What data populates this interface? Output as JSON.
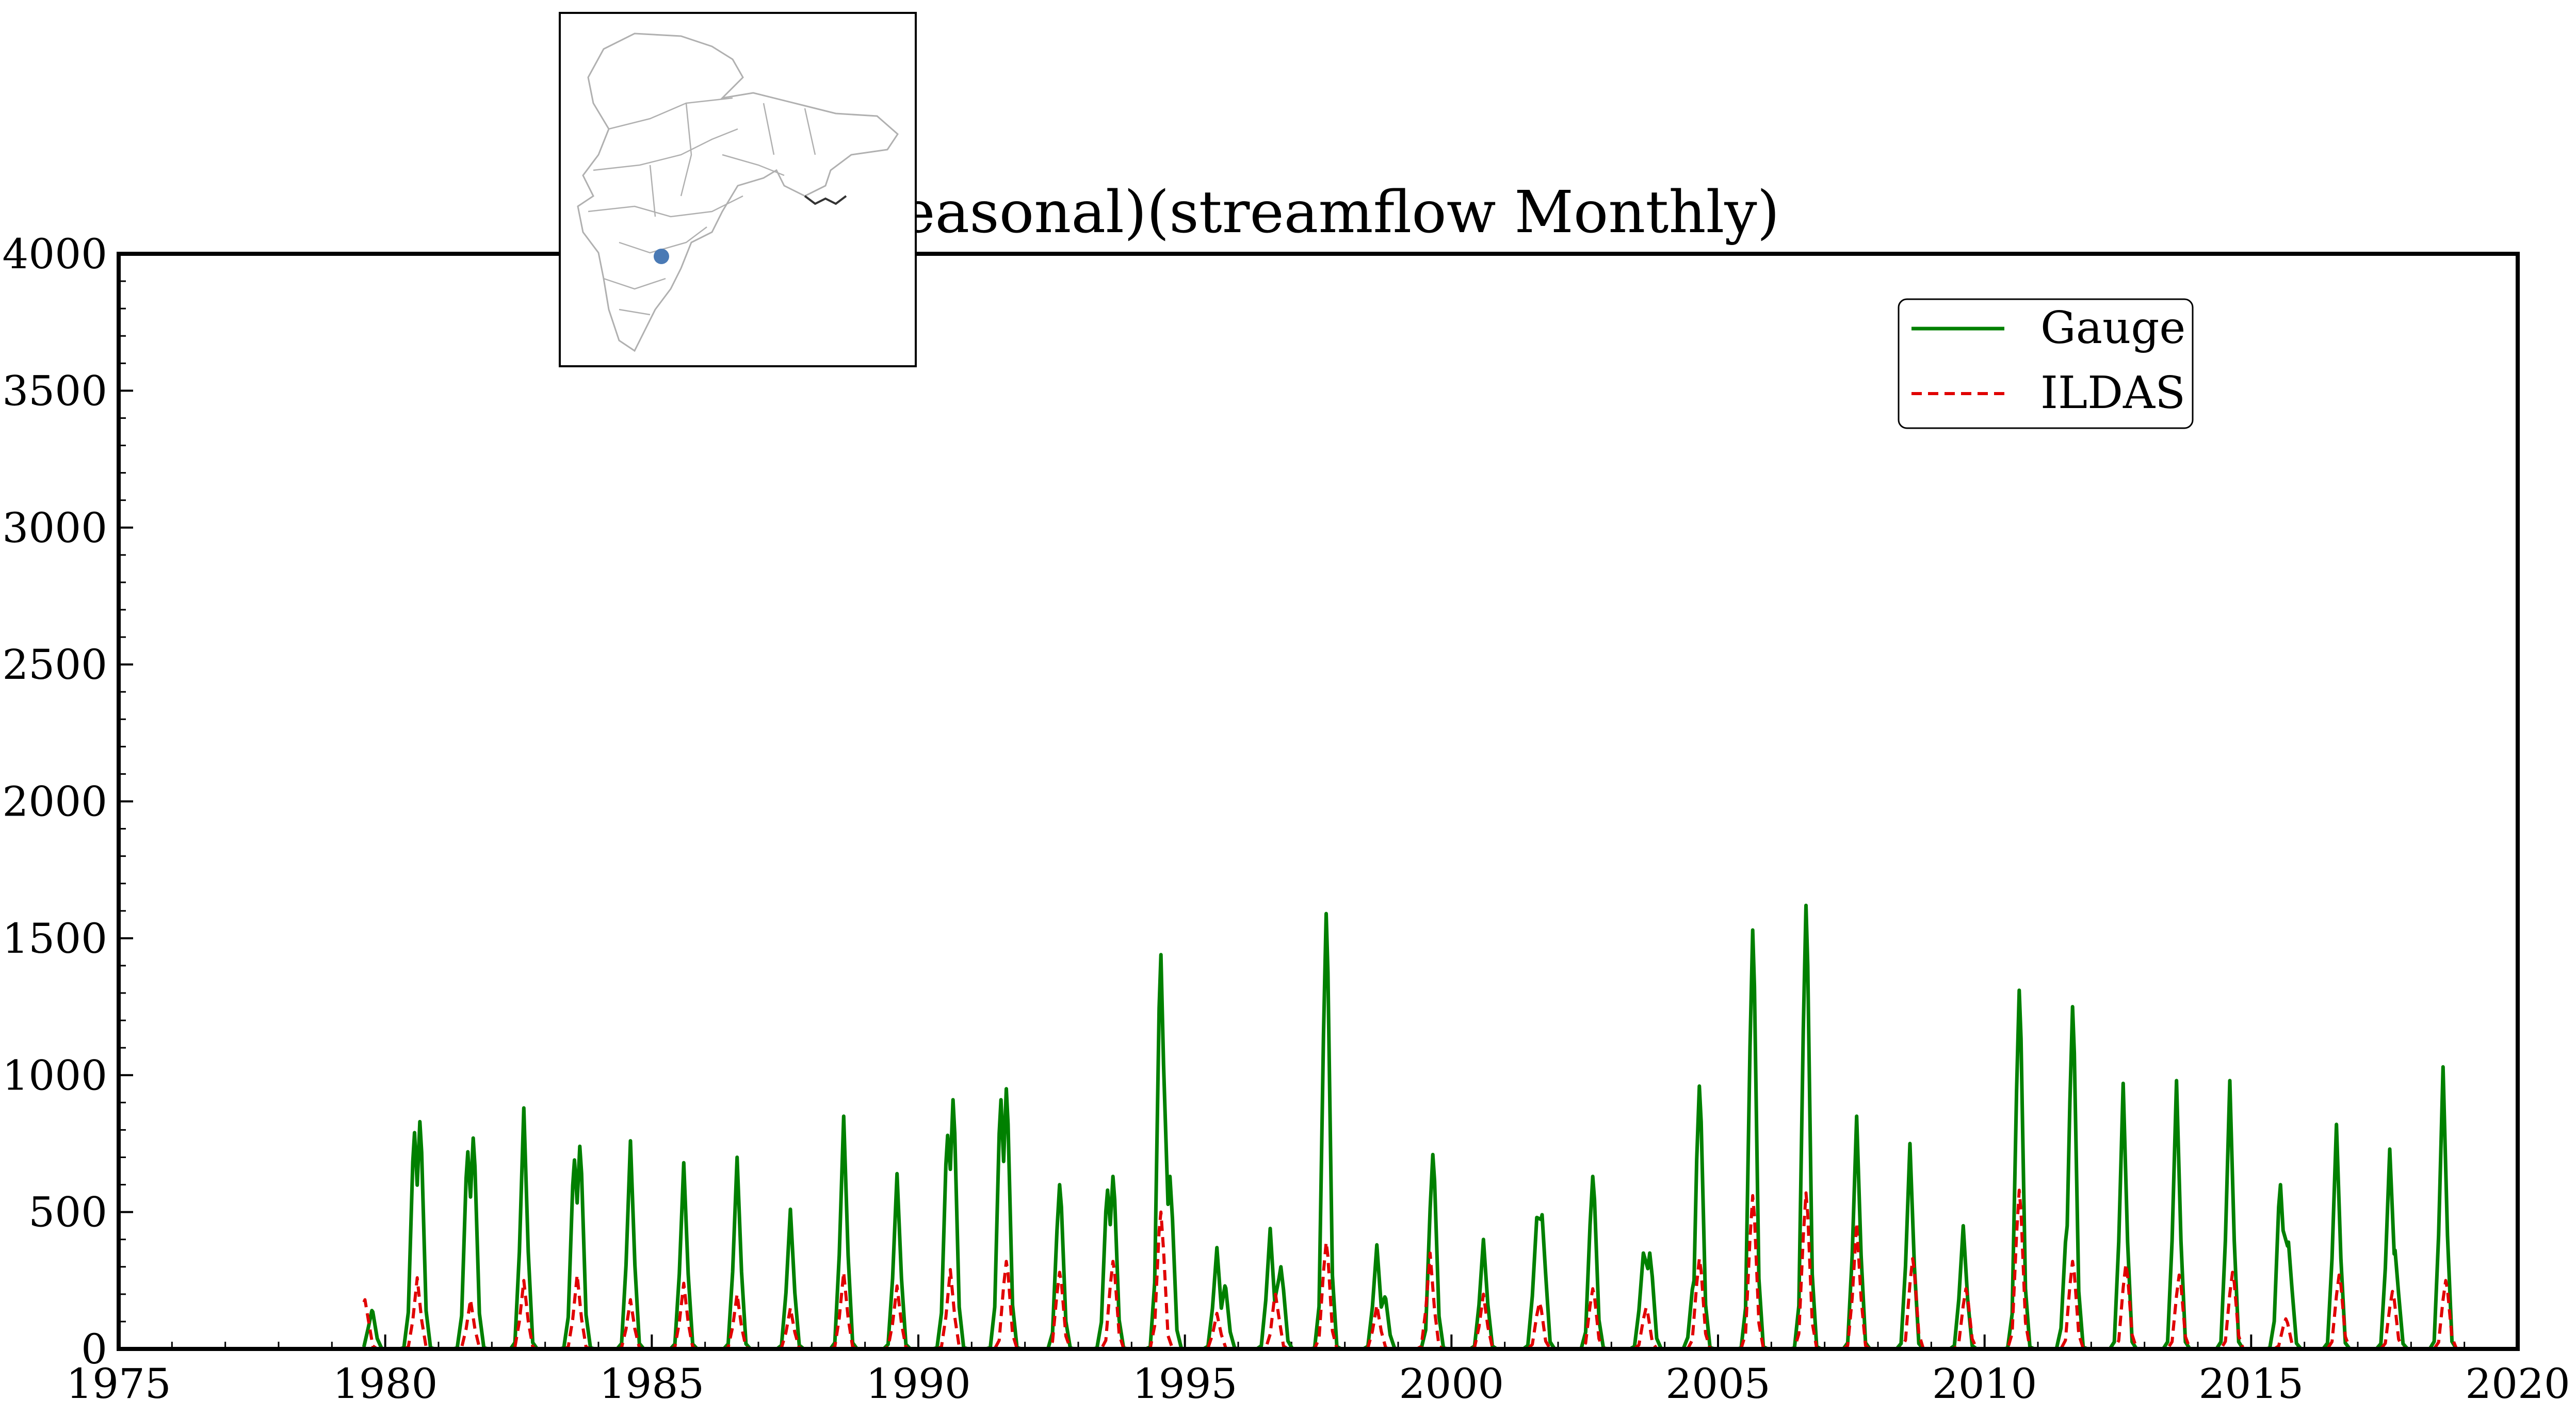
{
  "chart_data": {
    "type": "line",
    "title": "...rad (seasonal)(streamflow Monthly)",
    "xlabel": "",
    "ylabel": "",
    "xlim": [
      1975,
      2020
    ],
    "ylim": [
      0,
      4000
    ],
    "x_ticks": [
      "1975",
      "1980",
      "1985",
      "1990",
      "1995",
      "2000",
      "2005",
      "2010",
      "2015",
      "2020"
    ],
    "y_ticks": [
      "0",
      "500",
      "1000",
      "1500",
      "2000",
      "2500",
      "3000",
      "3500",
      "4000"
    ],
    "grid": false,
    "legend_position": "top-right",
    "inset": "map of South Asia with a blue marker for the gauge location",
    "series": [
      {
        "name": "Gauge",
        "color": "#008000",
        "style": "solid",
        "peaks": [
          [
            1979.75,
            140
          ],
          [
            1980.55,
            790
          ],
          [
            1980.65,
            830
          ],
          [
            1981.55,
            720
          ],
          [
            1981.65,
            770
          ],
          [
            1982.6,
            880
          ],
          [
            1983.55,
            690
          ],
          [
            1983.65,
            740
          ],
          [
            1984.6,
            760
          ],
          [
            1985.6,
            680
          ],
          [
            1986.6,
            700
          ],
          [
            1987.6,
            510
          ],
          [
            1988.6,
            850
          ],
          [
            1989.6,
            640
          ],
          [
            1990.55,
            780
          ],
          [
            1990.65,
            910
          ],
          [
            1991.55,
            910
          ],
          [
            1991.65,
            950
          ],
          [
            1992.65,
            600
          ],
          [
            1993.55,
            580
          ],
          [
            1993.65,
            630
          ],
          [
            1994.55,
            1440
          ],
          [
            1994.72,
            630
          ],
          [
            1995.6,
            370
          ],
          [
            1995.75,
            230
          ],
          [
            1996.6,
            440
          ],
          [
            1996.8,
            300
          ],
          [
            1997.65,
            1590
          ],
          [
            1998.6,
            380
          ],
          [
            1998.75,
            190
          ],
          [
            1999.65,
            710
          ],
          [
            2000.6,
            400
          ],
          [
            2001.6,
            480
          ],
          [
            2001.7,
            490
          ],
          [
            2002.65,
            630
          ],
          [
            2003.6,
            350
          ],
          [
            2003.72,
            350
          ],
          [
            2004.55,
            250
          ],
          [
            2004.65,
            960
          ],
          [
            2005.65,
            1530
          ],
          [
            2006.65,
            1620
          ],
          [
            2007.6,
            850
          ],
          [
            2008.6,
            750
          ],
          [
            2009.6,
            450
          ],
          [
            2010.65,
            1310
          ],
          [
            2011.55,
            450
          ],
          [
            2011.65,
            1250
          ],
          [
            2012.6,
            970
          ],
          [
            2013.6,
            980
          ],
          [
            2014.6,
            980
          ],
          [
            2015.55,
            600
          ],
          [
            2015.7,
            390
          ],
          [
            2016.6,
            820
          ],
          [
            2017.6,
            730
          ],
          [
            2017.7,
            360
          ],
          [
            2018.6,
            1030
          ]
        ]
      },
      {
        "name": "ILDAS",
        "color": "#e00000",
        "style": "dashed",
        "peaks": [
          [
            1979.62,
            180
          ],
          [
            1980.6,
            260
          ],
          [
            1981.6,
            180
          ],
          [
            1982.6,
            250
          ],
          [
            1983.6,
            270
          ],
          [
            1984.6,
            180
          ],
          [
            1985.6,
            240
          ],
          [
            1986.6,
            200
          ],
          [
            1987.6,
            150
          ],
          [
            1988.6,
            280
          ],
          [
            1989.6,
            230
          ],
          [
            1990.6,
            290
          ],
          [
            1991.65,
            320
          ],
          [
            1992.65,
            280
          ],
          [
            1993.65,
            320
          ],
          [
            1994.55,
            500
          ],
          [
            1995.6,
            130
          ],
          [
            1996.7,
            200
          ],
          [
            1997.65,
            390
          ],
          [
            1998.6,
            160
          ],
          [
            1999.6,
            350
          ],
          [
            2000.6,
            200
          ],
          [
            2001.65,
            170
          ],
          [
            2002.65,
            220
          ],
          [
            2003.65,
            150
          ],
          [
            2004.65,
            330
          ],
          [
            2005.65,
            560
          ],
          [
            2006.65,
            570
          ],
          [
            2007.6,
            460
          ],
          [
            2008.65,
            330
          ],
          [
            2009.65,
            220
          ],
          [
            2010.65,
            580
          ],
          [
            2011.65,
            320
          ],
          [
            2012.65,
            310
          ],
          [
            2013.65,
            270
          ],
          [
            2014.65,
            280
          ],
          [
            2015.65,
            110
          ],
          [
            2016.65,
            270
          ],
          [
            2017.65,
            210
          ],
          [
            2018.65,
            250
          ]
        ]
      }
    ],
    "series_end": 2018.95
  }
}
